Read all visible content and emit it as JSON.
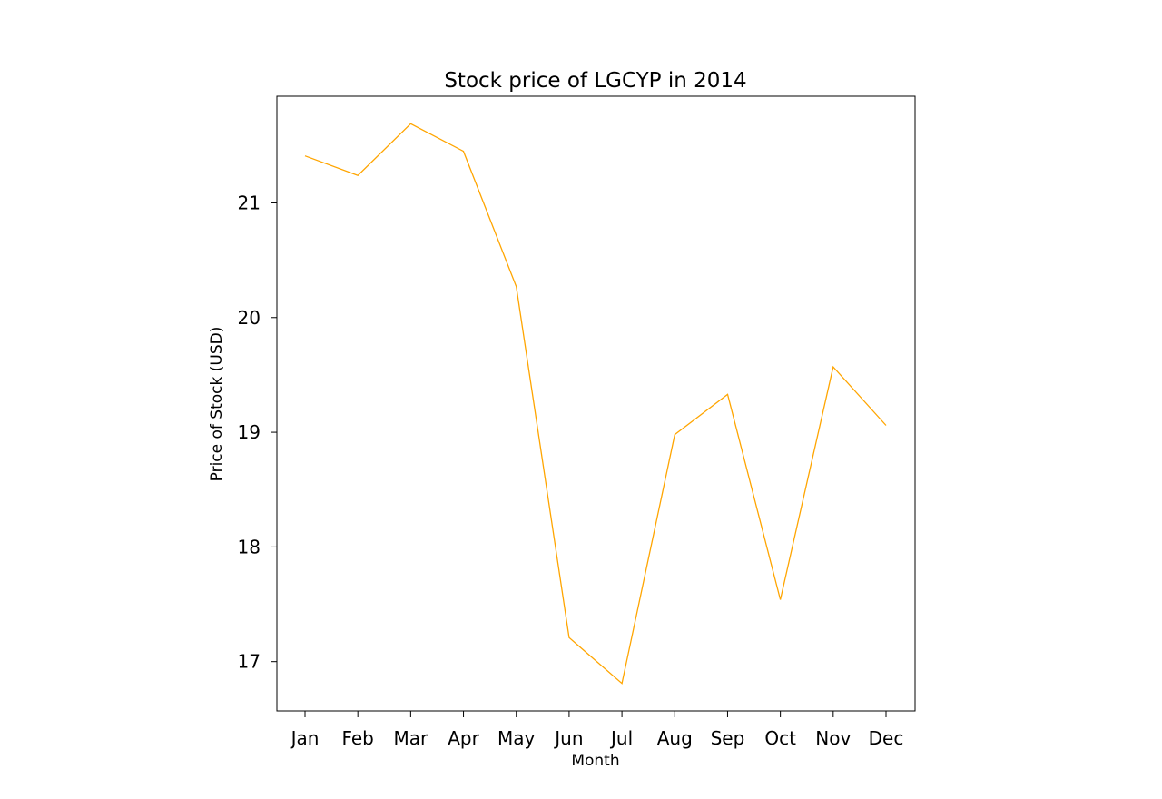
{
  "chart_data": {
    "type": "line",
    "title": "Stock price of LGCYP in 2014",
    "xlabel": "Month",
    "ylabel": "Price of Stock (USD)",
    "categories": [
      "Jan",
      "Feb",
      "Mar",
      "Apr",
      "May",
      "Jun",
      "Jul",
      "Aug",
      "Sep",
      "Oct",
      "Nov",
      "Dec"
    ],
    "series": [
      {
        "values": [
          21.41,
          21.24,
          21.69,
          21.45,
          20.27,
          17.21,
          16.81,
          18.98,
          19.33,
          17.54,
          19.57,
          19.06
        ],
        "color": "#FFA500"
      }
    ],
    "yticks": [
      17,
      18,
      19,
      20,
      21
    ],
    "ylim": [
      16.57,
      21.93
    ],
    "grid": false,
    "legend": "none"
  }
}
